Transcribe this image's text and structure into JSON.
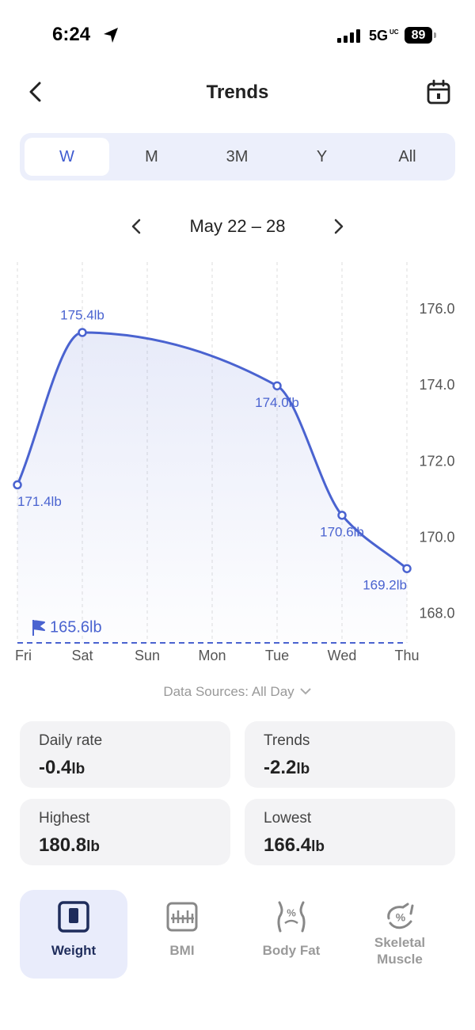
{
  "status_bar": {
    "time": "6:24",
    "network": "5G",
    "network_badge": "UC",
    "battery": "89"
  },
  "header": {
    "title": "Trends"
  },
  "tabs": [
    "W",
    "M",
    "3M",
    "Y",
    "All"
  ],
  "date_range": "May 22 – 28",
  "chart_data": {
    "type": "line",
    "categories": [
      "Fri",
      "Sat",
      "Sun",
      "Mon",
      "Tue",
      "Wed",
      "Thu"
    ],
    "series": [
      {
        "color": "#4a63d0",
        "x": [
          "Fri",
          "Sat",
          "Tue",
          "Wed",
          "Thu"
        ],
        "values": [
          171.4,
          175.4,
          174.0,
          170.6,
          169.2
        ],
        "value_labels": [
          "171.4lb",
          "175.4lb",
          "174.0lb",
          "170.6lb",
          "169.2lb"
        ]
      }
    ],
    "ylim": [
      167.25,
      177.25
    ],
    "yticks": [
      {
        "value": 168,
        "label": "168.0"
      },
      {
        "value": 170,
        "label": "170.0"
      },
      {
        "value": 172,
        "label": "172.0"
      },
      {
        "value": 174,
        "label": "174.0"
      },
      {
        "value": 176,
        "label": "176.0"
      }
    ],
    "goal_label": "165.6lb",
    "grid": true
  },
  "data_sources": "Data Sources: All Day",
  "stats": [
    {
      "label": "Daily rate",
      "value": "-0.4",
      "unit": "lb"
    },
    {
      "label": "Trends",
      "value": "-2.2",
      "unit": "lb"
    },
    {
      "label": "Highest",
      "value": "180.8",
      "unit": "lb"
    },
    {
      "label": "Lowest",
      "value": "166.4",
      "unit": "lb"
    }
  ],
  "nav": [
    "Weight",
    "BMI",
    "Body Fat",
    "Skeletal Muscle"
  ]
}
